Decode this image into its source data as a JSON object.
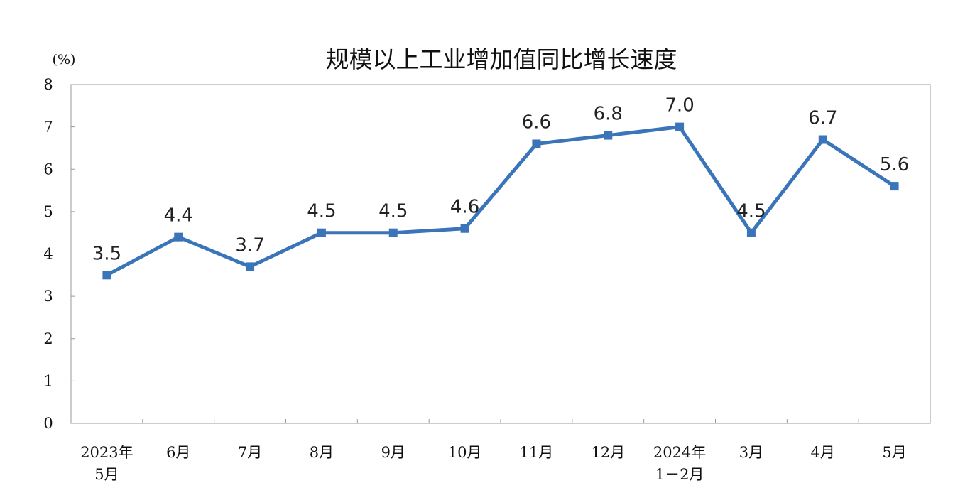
{
  "chart_data": {
    "type": "line",
    "title": "规模以上工业增加值同比增长速度",
    "ylabel": "(%)",
    "ylim": [
      0,
      8
    ],
    "yticks": [
      "0",
      "1",
      "2",
      "3",
      "4",
      "5",
      "6",
      "7",
      "8"
    ],
    "categories": [
      [
        "2023年",
        "5月"
      ],
      [
        "6月"
      ],
      [
        "7月"
      ],
      [
        "8月"
      ],
      [
        "9月"
      ],
      [
        "10月"
      ],
      [
        "11月"
      ],
      [
        "12月"
      ],
      [
        "2024年",
        "1－2月"
      ],
      [
        "3月"
      ],
      [
        "4月"
      ],
      [
        "5月"
      ]
    ],
    "values": [
      3.5,
      4.4,
      3.7,
      4.5,
      4.5,
      4.6,
      6.6,
      6.8,
      7.0,
      4.5,
      6.7,
      5.6
    ],
    "data_labels": [
      "3.5",
      "4.4",
      "3.7",
      "4.5",
      "4.5",
      "4.6",
      "6.6",
      "6.8",
      "7.0",
      "4.5",
      "6.7",
      "5.6"
    ],
    "line_color": "#3a74b9",
    "grid": false,
    "legend": "none"
  }
}
